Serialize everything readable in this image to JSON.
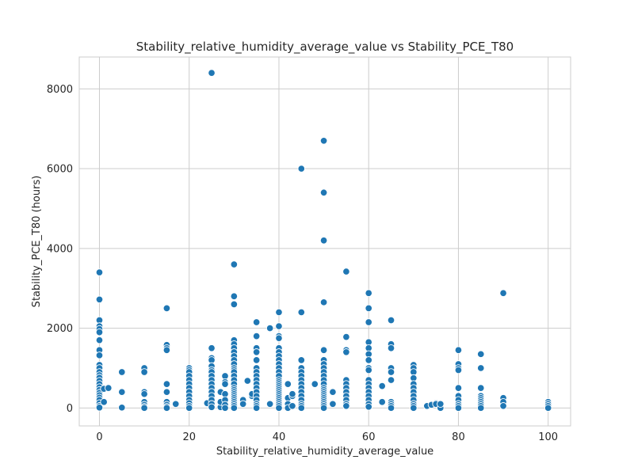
{
  "chart_data": {
    "type": "scatter",
    "title": "Stability_relative_humidity_average_value vs Stability_PCE_T80",
    "xlabel": "Stability_relative_humidity_average_value",
    "ylabel": "Stability_PCE_T80 (hours)",
    "xlim": [
      -4.5,
      105
    ],
    "ylim": [
      -450,
      8800
    ],
    "xticks": [
      0,
      20,
      40,
      60,
      80,
      100
    ],
    "yticks": [
      0,
      2000,
      4000,
      6000,
      8000
    ],
    "grid": true,
    "color": "#1f77b4",
    "points": [
      [
        0,
        3400
      ],
      [
        0,
        2720
      ],
      [
        0,
        2200
      ],
      [
        0,
        2050
      ],
      [
        0,
        1980
      ],
      [
        0,
        1900
      ],
      [
        0,
        1700
      ],
      [
        0,
        1450
      ],
      [
        0,
        1320
      ],
      [
        0,
        1080
      ],
      [
        0,
        1000
      ],
      [
        0,
        900
      ],
      [
        0,
        820
      ],
      [
        0,
        760
      ],
      [
        0,
        680
      ],
      [
        0,
        600
      ],
      [
        0,
        520
      ],
      [
        0,
        450
      ],
      [
        0,
        380
      ],
      [
        0,
        320
      ],
      [
        0,
        260
      ],
      [
        0,
        200
      ],
      [
        0,
        120
      ],
      [
        0,
        50
      ],
      [
        0,
        10
      ],
      [
        1,
        480
      ],
      [
        1,
        150
      ],
      [
        2,
        500
      ],
      [
        5,
        900
      ],
      [
        5,
        400
      ],
      [
        5,
        10
      ],
      [
        10,
        1000
      ],
      [
        10,
        900
      ],
      [
        10,
        400
      ],
      [
        10,
        350
      ],
      [
        10,
        150
      ],
      [
        10,
        80
      ],
      [
        10,
        30
      ],
      [
        10,
        0
      ],
      [
        15,
        2500
      ],
      [
        15,
        1580
      ],
      [
        15,
        1500
      ],
      [
        15,
        1450
      ],
      [
        15,
        600
      ],
      [
        15,
        400
      ],
      [
        15,
        150
      ],
      [
        15,
        80
      ],
      [
        15,
        30
      ],
      [
        15,
        0
      ],
      [
        17,
        100
      ],
      [
        20,
        1000
      ],
      [
        20,
        950
      ],
      [
        20,
        900
      ],
      [
        20,
        800
      ],
      [
        20,
        700
      ],
      [
        20,
        600
      ],
      [
        20,
        500
      ],
      [
        20,
        400
      ],
      [
        20,
        300
      ],
      [
        20,
        200
      ],
      [
        20,
        120
      ],
      [
        20,
        50
      ],
      [
        20,
        0
      ],
      [
        24,
        120
      ],
      [
        25,
        8400
      ],
      [
        25,
        1500
      ],
      [
        25,
        1250
      ],
      [
        25,
        1200
      ],
      [
        25,
        1050
      ],
      [
        25,
        950
      ],
      [
        25,
        900
      ],
      [
        25,
        800
      ],
      [
        25,
        700
      ],
      [
        25,
        600
      ],
      [
        25,
        500
      ],
      [
        25,
        400
      ],
      [
        25,
        300
      ],
      [
        25,
        200
      ],
      [
        25,
        100
      ],
      [
        25,
        20
      ],
      [
        27,
        20
      ],
      [
        27,
        400
      ],
      [
        27,
        150
      ],
      [
        28,
        800
      ],
      [
        28,
        650
      ],
      [
        28,
        600
      ],
      [
        28,
        350
      ],
      [
        28,
        200
      ],
      [
        28,
        80
      ],
      [
        28,
        0
      ],
      [
        30,
        3600
      ],
      [
        30,
        2800
      ],
      [
        30,
        2600
      ],
      [
        30,
        1700
      ],
      [
        30,
        1600
      ],
      [
        30,
        1500
      ],
      [
        30,
        1400
      ],
      [
        30,
        1300
      ],
      [
        30,
        1200
      ],
      [
        30,
        1100
      ],
      [
        30,
        1000
      ],
      [
        30,
        950
      ],
      [
        30,
        900
      ],
      [
        30,
        800
      ],
      [
        30,
        700
      ],
      [
        30,
        600
      ],
      [
        30,
        500
      ],
      [
        30,
        450
      ],
      [
        30,
        400
      ],
      [
        30,
        350
      ],
      [
        30,
        300
      ],
      [
        30,
        250
      ],
      [
        30,
        200
      ],
      [
        30,
        150
      ],
      [
        30,
        100
      ],
      [
        30,
        50
      ],
      [
        30,
        0
      ],
      [
        32,
        200
      ],
      [
        32,
        100
      ],
      [
        33,
        680
      ],
      [
        34,
        300
      ],
      [
        34,
        350
      ],
      [
        35,
        2150
      ],
      [
        35,
        1800
      ],
      [
        35,
        1500
      ],
      [
        35,
        1400
      ],
      [
        35,
        1200
      ],
      [
        35,
        1000
      ],
      [
        35,
        900
      ],
      [
        35,
        800
      ],
      [
        35,
        700
      ],
      [
        35,
        600
      ],
      [
        35,
        500
      ],
      [
        35,
        400
      ],
      [
        35,
        300
      ],
      [
        35,
        200
      ],
      [
        35,
        100
      ],
      [
        35,
        50
      ],
      [
        35,
        0
      ],
      [
        38,
        2000
      ],
      [
        38,
        100
      ],
      [
        40,
        2400
      ],
      [
        40,
        2050
      ],
      [
        40,
        1800
      ],
      [
        40,
        1750
      ],
      [
        40,
        1500
      ],
      [
        40,
        1400
      ],
      [
        40,
        1300
      ],
      [
        40,
        1200
      ],
      [
        40,
        1100
      ],
      [
        40,
        1000
      ],
      [
        40,
        900
      ],
      [
        40,
        800
      ],
      [
        40,
        700
      ],
      [
        40,
        650
      ],
      [
        40,
        600
      ],
      [
        40,
        550
      ],
      [
        40,
        500
      ],
      [
        40,
        450
      ],
      [
        40,
        400
      ],
      [
        40,
        350
      ],
      [
        40,
        300
      ],
      [
        40,
        250
      ],
      [
        40,
        200
      ],
      [
        40,
        150
      ],
      [
        40,
        100
      ],
      [
        40,
        50
      ],
      [
        40,
        0
      ],
      [
        42,
        600
      ],
      [
        42,
        250
      ],
      [
        42,
        100
      ],
      [
        42,
        0
      ],
      [
        43,
        300
      ],
      [
        43,
        350
      ],
      [
        43,
        50
      ],
      [
        45,
        6000
      ],
      [
        45,
        2400
      ],
      [
        45,
        1200
      ],
      [
        45,
        1000
      ],
      [
        45,
        900
      ],
      [
        45,
        800
      ],
      [
        45,
        700
      ],
      [
        45,
        600
      ],
      [
        45,
        500
      ],
      [
        45,
        400
      ],
      [
        45,
        300
      ],
      [
        45,
        200
      ],
      [
        45,
        100
      ],
      [
        45,
        50
      ],
      [
        45,
        0
      ],
      [
        48,
        600
      ],
      [
        50,
        6700
      ],
      [
        50,
        5400
      ],
      [
        50,
        4200
      ],
      [
        50,
        2650
      ],
      [
        50,
        1450
      ],
      [
        50,
        1200
      ],
      [
        50,
        1100
      ],
      [
        50,
        1000
      ],
      [
        50,
        900
      ],
      [
        50,
        800
      ],
      [
        50,
        700
      ],
      [
        50,
        600
      ],
      [
        50,
        500
      ],
      [
        50,
        450
      ],
      [
        50,
        400
      ],
      [
        50,
        350
      ],
      [
        50,
        300
      ],
      [
        50,
        250
      ],
      [
        50,
        200
      ],
      [
        50,
        150
      ],
      [
        50,
        100
      ],
      [
        50,
        50
      ],
      [
        50,
        0
      ],
      [
        52,
        400
      ],
      [
        52,
        100
      ],
      [
        55,
        3420
      ],
      [
        55,
        1780
      ],
      [
        55,
        1450
      ],
      [
        55,
        1400
      ],
      [
        55,
        700
      ],
      [
        55,
        600
      ],
      [
        55,
        500
      ],
      [
        55,
        400
      ],
      [
        55,
        300
      ],
      [
        55,
        200
      ],
      [
        55,
        100
      ],
      [
        55,
        50
      ],
      [
        60,
        2880
      ],
      [
        60,
        2500
      ],
      [
        60,
        2150
      ],
      [
        60,
        1650
      ],
      [
        60,
        1500
      ],
      [
        60,
        1350
      ],
      [
        60,
        1200
      ],
      [
        60,
        1000
      ],
      [
        60,
        950
      ],
      [
        60,
        700
      ],
      [
        60,
        600
      ],
      [
        60,
        500
      ],
      [
        60,
        400
      ],
      [
        60,
        300
      ],
      [
        60,
        200
      ],
      [
        60,
        100
      ],
      [
        60,
        30
      ],
      [
        63,
        550
      ],
      [
        63,
        150
      ],
      [
        65,
        2200
      ],
      [
        65,
        1600
      ],
      [
        65,
        1500
      ],
      [
        65,
        1000
      ],
      [
        65,
        900
      ],
      [
        65,
        700
      ],
      [
        65,
        150
      ],
      [
        65,
        100
      ],
      [
        65,
        50
      ],
      [
        65,
        0
      ],
      [
        70,
        1080
      ],
      [
        70,
        1000
      ],
      [
        70,
        900
      ],
      [
        70,
        750
      ],
      [
        70,
        600
      ],
      [
        70,
        500
      ],
      [
        70,
        400
      ],
      [
        70,
        300
      ],
      [
        70,
        200
      ],
      [
        70,
        100
      ],
      [
        70,
        50
      ],
      [
        70,
        0
      ],
      [
        73,
        50
      ],
      [
        74,
        80
      ],
      [
        75,
        120
      ],
      [
        75,
        100
      ],
      [
        76,
        0
      ],
      [
        76,
        100
      ],
      [
        80,
        1450
      ],
      [
        80,
        1100
      ],
      [
        80,
        1000
      ],
      [
        80,
        950
      ],
      [
        80,
        500
      ],
      [
        80,
        300
      ],
      [
        80,
        200
      ],
      [
        80,
        100
      ],
      [
        80,
        50
      ],
      [
        80,
        0
      ],
      [
        85,
        1350
      ],
      [
        85,
        1000
      ],
      [
        85,
        500
      ],
      [
        85,
        300
      ],
      [
        85,
        250
      ],
      [
        85,
        200
      ],
      [
        85,
        150
      ],
      [
        85,
        100
      ],
      [
        85,
        50
      ],
      [
        85,
        0
      ],
      [
        90,
        2880
      ],
      [
        90,
        250
      ],
      [
        90,
        150
      ],
      [
        90,
        50
      ],
      [
        100,
        150
      ],
      [
        100,
        100
      ],
      [
        100,
        50
      ],
      [
        100,
        0
      ]
    ]
  }
}
